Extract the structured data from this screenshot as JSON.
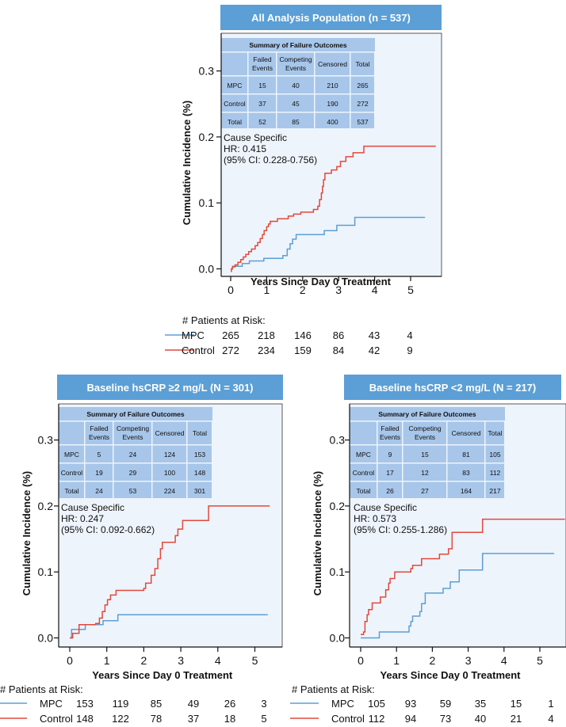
{
  "chart_data": [
    {
      "type": "line",
      "subtype": "step",
      "title": "All Analysis Population (n = 537)",
      "xlabel": "Years Since Day 0 Treatment",
      "ylabel": "Cumulative Incidence (%)",
      "xlim": [
        -0.2,
        5.75
      ],
      "ylim": [
        -0.02,
        0.345
      ],
      "x_ticks": [
        "0",
        "1",
        "2",
        "3",
        "4",
        "5"
      ],
      "y_ticks": [
        "0.0",
        "0.1",
        "0.2",
        "0.3"
      ],
      "summary_table": {
        "title": "Summary of Failure Outcomes",
        "headers": [
          "",
          "Failed\nEvents",
          "Competing\nEvents",
          "Censored",
          "Total"
        ],
        "rows": [
          [
            "MPC",
            "15",
            "40",
            "210",
            "265"
          ],
          [
            "Control",
            "37",
            "45",
            "190",
            "272"
          ],
          [
            "Total",
            "52",
            "85",
            "400",
            "537"
          ]
        ]
      },
      "hr_text": [
        "Cause Specific",
        "HR: 0.415",
        "(95% CI: 0.228-0.756)"
      ],
      "risk_table": {
        "title": "# Patients at Risk:",
        "rows": [
          {
            "label": "MPC",
            "values": [
              "265",
              "218",
              "146",
              "86",
              "43",
              "4"
            ]
          },
          {
            "label": "Control",
            "values": [
              "272",
              "234",
              "159",
              "84",
              "42",
              "9"
            ]
          }
        ]
      },
      "series": [
        {
          "name": "MPC",
          "points": [
            [
              0,
              0
            ],
            [
              0.05,
              0.004
            ],
            [
              0.3,
              0.004
            ],
            [
              0.32,
              0.008
            ],
            [
              0.5,
              0.008
            ],
            [
              0.52,
              0.012
            ],
            [
              0.9,
              0.012
            ],
            [
              0.92,
              0.016
            ],
            [
              1.4,
              0.016
            ],
            [
              1.45,
              0.02
            ],
            [
              1.55,
              0.02
            ],
            [
              1.57,
              0.03
            ],
            [
              1.62,
              0.03
            ],
            [
              1.65,
              0.038
            ],
            [
              1.7,
              0.038
            ],
            [
              1.72,
              0.045
            ],
            [
              1.8,
              0.045
            ],
            [
              1.82,
              0.052
            ],
            [
              2.55,
              0.052
            ],
            [
              2.6,
              0.058
            ],
            [
              2.9,
              0.058
            ],
            [
              2.95,
              0.066
            ],
            [
              3.4,
              0.066
            ],
            [
              3.45,
              0.078
            ],
            [
              5.4,
              0.078
            ]
          ]
        },
        {
          "name": "Control",
          "points": [
            [
              0,
              -0.004
            ],
            [
              0.02,
              0
            ],
            [
              0.05,
              0.003
            ],
            [
              0.12,
              0.006
            ],
            [
              0.2,
              0.01
            ],
            [
              0.28,
              0.014
            ],
            [
              0.35,
              0.018
            ],
            [
              0.42,
              0.022
            ],
            [
              0.5,
              0.026
            ],
            [
              0.58,
              0.03
            ],
            [
              0.68,
              0.035
            ],
            [
              0.75,
              0.04
            ],
            [
              0.82,
              0.046
            ],
            [
              0.88,
              0.052
            ],
            [
              0.93,
              0.058
            ],
            [
              1.0,
              0.064
            ],
            [
              1.05,
              0.068
            ],
            [
              1.1,
              0.072
            ],
            [
              1.3,
              0.076
            ],
            [
              1.6,
              0.08
            ],
            [
              1.75,
              0.083
            ],
            [
              1.95,
              0.086
            ],
            [
              2.3,
              0.09
            ],
            [
              2.42,
              0.095
            ],
            [
              2.47,
              0.105
            ],
            [
              2.52,
              0.115
            ],
            [
              2.55,
              0.125
            ],
            [
              2.58,
              0.135
            ],
            [
              2.62,
              0.145
            ],
            [
              2.8,
              0.15
            ],
            [
              2.95,
              0.155
            ],
            [
              3.05,
              0.163
            ],
            [
              3.2,
              0.17
            ],
            [
              3.4,
              0.176
            ],
            [
              3.7,
              0.186
            ],
            [
              5.7,
              0.186
            ]
          ]
        }
      ]
    },
    {
      "type": "line",
      "subtype": "step",
      "title": "Baseline hsCRP ≥2 mg/L (N = 301)",
      "xlabel": "Years Since Day 0 Treatment",
      "ylabel": "Cumulative Incidence (%)",
      "xlim": [
        -0.2,
        5.75
      ],
      "ylim": [
        -0.02,
        0.345
      ],
      "x_ticks": [
        "0",
        "1",
        "2",
        "3",
        "4",
        "5"
      ],
      "y_ticks": [
        "0.0",
        "0.1",
        "0.2",
        "0.3"
      ],
      "summary_table": {
        "title": "Summary of Failure Outcomes",
        "headers": [
          "",
          "Failed\nEvents",
          "Competing\nEvents",
          "Censored",
          "Total"
        ],
        "rows": [
          [
            "MPC",
            "5",
            "24",
            "124",
            "153"
          ],
          [
            "Control",
            "19",
            "29",
            "100",
            "148"
          ],
          [
            "Total",
            "24",
            "53",
            "224",
            "301"
          ]
        ]
      },
      "hr_text": [
        "Cause Specific",
        "HR: 0.247",
        "(95% CI: 0.092-0.662)"
      ],
      "risk_table": {
        "title": "# Patients at Risk:",
        "rows": [
          {
            "label": "MPC",
            "values": [
              "153",
              "119",
              "85",
              "49",
              "26",
              "3"
            ]
          },
          {
            "label": "Control",
            "values": [
              "148",
              "122",
              "78",
              "37",
              "18",
              "5"
            ]
          }
        ]
      },
      "series": [
        {
          "name": "MPC",
          "points": [
            [
              0,
              0
            ],
            [
              0.05,
              0.013
            ],
            [
              0.4,
              0.013
            ],
            [
              0.42,
              0.02
            ],
            [
              0.85,
              0.02
            ],
            [
              0.9,
              0.026
            ],
            [
              1.25,
              0.026
            ],
            [
              1.3,
              0.035
            ],
            [
              5.35,
              0.035
            ]
          ]
        },
        {
          "name": "Control",
          "points": [
            [
              0,
              0
            ],
            [
              0.08,
              0.007
            ],
            [
              0.25,
              0.02
            ],
            [
              0.7,
              0.022
            ],
            [
              0.8,
              0.03
            ],
            [
              0.88,
              0.04
            ],
            [
              0.95,
              0.05
            ],
            [
              1.02,
              0.058
            ],
            [
              1.1,
              0.065
            ],
            [
              1.25,
              0.072
            ],
            [
              2.0,
              0.075
            ],
            [
              2.05,
              0.083
            ],
            [
              2.2,
              0.095
            ],
            [
              2.3,
              0.105
            ],
            [
              2.38,
              0.12
            ],
            [
              2.45,
              0.135
            ],
            [
              2.5,
              0.145
            ],
            [
              2.85,
              0.155
            ],
            [
              2.92,
              0.165
            ],
            [
              3.05,
              0.178
            ],
            [
              3.75,
              0.2
            ],
            [
              5.4,
              0.2
            ]
          ]
        }
      ]
    },
    {
      "type": "line",
      "subtype": "step",
      "title": "Baseline hsCRP <2 mg/L (N = 217)",
      "xlabel": "Years Since Day 0 Treatment",
      "ylabel": "Cumulative Incidence (%)",
      "xlim": [
        -0.2,
        5.75
      ],
      "ylim": [
        -0.02,
        0.345
      ],
      "x_ticks": [
        "0",
        "1",
        "2",
        "3",
        "4",
        "5"
      ],
      "y_ticks": [
        "0.0",
        "0.1",
        "0.2",
        "0.3"
      ],
      "summary_table": {
        "title": "Summary of Failure Outcomes",
        "headers": [
          "",
          "Failed\nEvents",
          "Competing\nEvents",
          "Censored",
          "Total"
        ],
        "rows": [
          [
            "MPC",
            "9",
            "15",
            "81",
            "105"
          ],
          [
            "Control",
            "17",
            "12",
            "83",
            "112"
          ],
          [
            "Total",
            "26",
            "27",
            "164",
            "217"
          ]
        ]
      },
      "hr_text": [
        "Cause Specific",
        "HR: 0.573",
        "(95% CI: 0.255-1.286)"
      ],
      "risk_table": {
        "title": "# Patients at Risk:",
        "rows": [
          {
            "label": "MPC",
            "values": [
              "105",
              "93",
              "59",
              "35",
              "15",
              "1"
            ]
          },
          {
            "label": "Control",
            "values": [
              "112",
              "94",
              "73",
              "40",
              "21",
              "4"
            ]
          }
        ]
      },
      "series": [
        {
          "name": "MPC",
          "points": [
            [
              0,
              0
            ],
            [
              0.5,
              0
            ],
            [
              0.52,
              0.009
            ],
            [
              1.3,
              0.009
            ],
            [
              1.35,
              0.018
            ],
            [
              1.4,
              0.025
            ],
            [
              1.45,
              0.033
            ],
            [
              1.65,
              0.04
            ],
            [
              1.7,
              0.052
            ],
            [
              1.8,
              0.068
            ],
            [
              2.3,
              0.075
            ],
            [
              2.5,
              0.085
            ],
            [
              2.75,
              0.103
            ],
            [
              3.4,
              0.128
            ],
            [
              5.4,
              0.128
            ]
          ]
        },
        {
          "name": "Control",
          "points": [
            [
              0,
              0.005
            ],
            [
              0.08,
              0.009
            ],
            [
              0.12,
              0.025
            ],
            [
              0.18,
              0.035
            ],
            [
              0.22,
              0.043
            ],
            [
              0.32,
              0.053
            ],
            [
              0.55,
              0.062
            ],
            [
              0.7,
              0.073
            ],
            [
              0.78,
              0.083
            ],
            [
              0.82,
              0.09
            ],
            [
              0.95,
              0.1
            ],
            [
              1.4,
              0.105
            ],
            [
              1.45,
              0.11
            ],
            [
              1.7,
              0.12
            ],
            [
              2.2,
              0.127
            ],
            [
              2.45,
              0.135
            ],
            [
              2.55,
              0.16
            ],
            [
              3.4,
              0.18
            ],
            [
              5.7,
              0.18
            ]
          ]
        }
      ]
    }
  ],
  "colors": {
    "mpc": "#5b9fd6",
    "control": "#e2483d",
    "banner": "#5b9fd6",
    "table": "#a7c6ea",
    "plot_bg": "#eef4fb"
  }
}
